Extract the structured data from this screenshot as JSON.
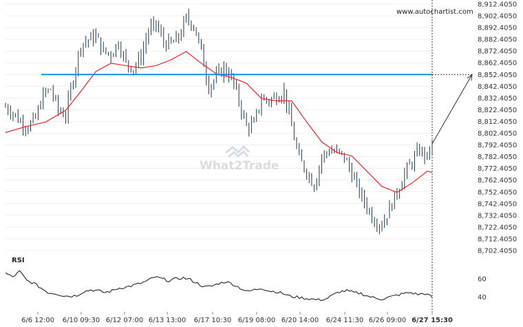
{
  "source_label": "www.autochartist.com",
  "watermark": "What2Trade",
  "rsi_label": "RSI",
  "colors": {
    "candles": "#1f3a4d",
    "moving_average": "#e8282b",
    "level": "#1a8fd6",
    "rsi": "#111111",
    "grid": "#e6e6e6"
  },
  "chart_data": {
    "type": "line",
    "y_ticks": [
      "8,912.4050",
      "8,902.4050",
      "8,892.4050",
      "8,882.4050",
      "8,872.4050",
      "8,862.4050",
      "8,852.4050",
      "8,842.4050",
      "8,832.4050",
      "8,822.4050",
      "8,812.4050",
      "8,802.4050",
      "8,792.4050",
      "8,782.4050",
      "8,772.4050",
      "8,762.4050",
      "8,752.4050",
      "8,742.4050",
      "8,732.4050",
      "8,722.4050",
      "8,712.4050",
      "8,702.4050"
    ],
    "x_ticks": [
      "6/6 12:00",
      "6/10 09:30",
      "6/12 07:00",
      "6/13 13:00",
      "6/17 10:30",
      "6/19 08:00",
      "6/20 14:00",
      "6/24 11:30",
      "6/26 09:00",
      "6/27 15:30"
    ],
    "ylim": [
      8702.405,
      8912.405
    ],
    "level": 8852.405,
    "projection_target": 8852.405,
    "last_close": 8793.5,
    "price_path": [
      [
        0,
        8825
      ],
      [
        3,
        8820
      ],
      [
        6,
        8812
      ],
      [
        9,
        8808
      ],
      [
        12,
        8815
      ],
      [
        15,
        8835
      ],
      [
        18,
        8840
      ],
      [
        21,
        8822
      ],
      [
        24,
        8818
      ],
      [
        27,
        8850
      ],
      [
        30,
        8878
      ],
      [
        33,
        8882
      ],
      [
        36,
        8885
      ],
      [
        39,
        8872
      ],
      [
        42,
        8870
      ],
      [
        45,
        8880
      ],
      [
        48,
        8862
      ],
      [
        51,
        8858
      ],
      [
        54,
        8868
      ],
      [
        57,
        8890
      ],
      [
        60,
        8895
      ],
      [
        63,
        8880
      ],
      [
        66,
        8878
      ],
      [
        69,
        8884
      ],
      [
        72,
        8900
      ],
      [
        75,
        8895
      ],
      [
        78,
        8872
      ],
      [
        81,
        8842
      ],
      [
        84,
        8850
      ],
      [
        87,
        8858
      ],
      [
        90,
        8850
      ],
      [
        93,
        8830
      ],
      [
        96,
        8808
      ],
      [
        99,
        8810
      ],
      [
        102,
        8832
      ],
      [
        105,
        8830
      ],
      [
        108,
        8834
      ],
      [
        111,
        8838
      ],
      [
        114,
        8808
      ],
      [
        117,
        8780
      ],
      [
        120,
        8770
      ],
      [
        123,
        8758
      ],
      [
        126,
        8782
      ],
      [
        129,
        8788
      ],
      [
        132,
        8786
      ],
      [
        135,
        8782
      ],
      [
        138,
        8768
      ],
      [
        141,
        8752
      ],
      [
        144,
        8740
      ],
      [
        147,
        8728
      ],
      [
        150,
        8725
      ],
      [
        153,
        8738
      ],
      [
        156,
        8752
      ],
      [
        159,
        8768
      ],
      [
        162,
        8778
      ],
      [
        165,
        8788
      ],
      [
        168,
        8782
      ],
      [
        170,
        8793
      ]
    ],
    "moving_average": [
      [
        0,
        8803
      ],
      [
        8,
        8808
      ],
      [
        16,
        8812
      ],
      [
        24,
        8822
      ],
      [
        30,
        8838
      ],
      [
        36,
        8855
      ],
      [
        42,
        8862
      ],
      [
        48,
        8860
      ],
      [
        54,
        8858
      ],
      [
        60,
        8860
      ],
      [
        66,
        8865
      ],
      [
        72,
        8872
      ],
      [
        78,
        8862
      ],
      [
        84,
        8853
      ],
      [
        90,
        8850
      ],
      [
        96,
        8845
      ],
      [
        102,
        8832
      ],
      [
        108,
        8830
      ],
      [
        114,
        8830
      ],
      [
        120,
        8812
      ],
      [
        126,
        8795
      ],
      [
        132,
        8786
      ],
      [
        138,
        8783
      ],
      [
        144,
        8770
      ],
      [
        150,
        8757
      ],
      [
        156,
        8752
      ],
      [
        162,
        8760
      ],
      [
        168,
        8770
      ],
      [
        170,
        8769
      ]
    ],
    "rsi": {
      "ticks": [
        "60",
        "40"
      ],
      "ylim": [
        30,
        75
      ],
      "values": [
        66,
        62,
        68,
        58,
        55,
        50,
        45,
        44,
        42,
        41,
        42,
        46,
        48,
        47,
        45,
        47,
        50,
        51,
        53,
        55,
        58,
        62,
        60,
        58,
        60,
        61,
        59,
        55,
        51,
        52,
        55,
        57,
        54,
        50,
        46,
        48,
        50,
        47,
        46,
        44,
        41,
        40,
        39,
        38,
        37,
        38,
        42,
        46,
        47,
        45,
        44,
        41,
        39,
        38,
        40,
        42,
        44,
        45,
        43,
        44,
        40
      ]
    }
  }
}
